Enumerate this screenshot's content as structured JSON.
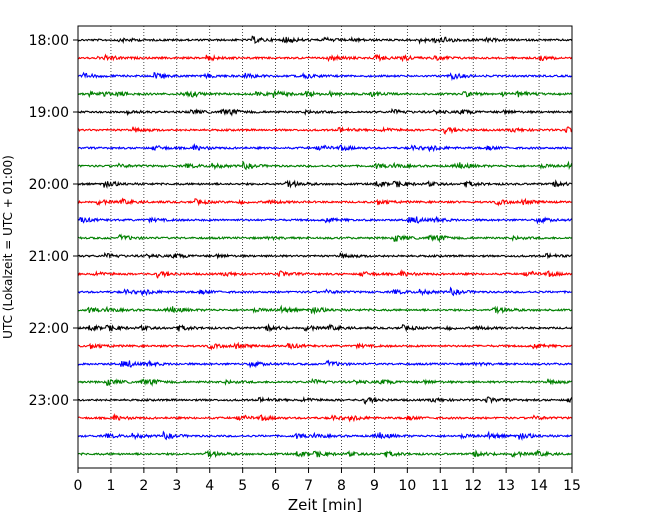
{
  "chart_data": {
    "type": "line",
    "subtype": "helicorder-seismogram",
    "xlabel": "Zeit  [min]",
    "ylabel": "UTC (Lokalzeit = UTC + 01:00)",
    "xlim": [
      0,
      15
    ],
    "x_ticks": [
      "0",
      "1",
      "2",
      "3",
      "4",
      "5",
      "6",
      "7",
      "8",
      "9",
      "10",
      "11",
      "12",
      "13",
      "14",
      "15"
    ],
    "y_ticks": [
      "18:00",
      "19:00",
      "20:00",
      "21:00",
      "22:00",
      "23:00"
    ],
    "grid": "vertical-dotted",
    "trace_interval_minutes": 15,
    "trace_start_times": [
      "18:00",
      "18:15",
      "18:30",
      "18:45",
      "19:00",
      "19:15",
      "19:30",
      "19:45",
      "20:00",
      "20:15",
      "20:30",
      "20:45",
      "21:00",
      "21:15",
      "21:30",
      "21:45",
      "22:00",
      "22:15",
      "22:30",
      "22:45",
      "23:00",
      "23:15",
      "23:30",
      "23:45"
    ],
    "trace_colors": [
      "#000000",
      "#ff0000",
      "#0000ff",
      "#008000"
    ]
  }
}
